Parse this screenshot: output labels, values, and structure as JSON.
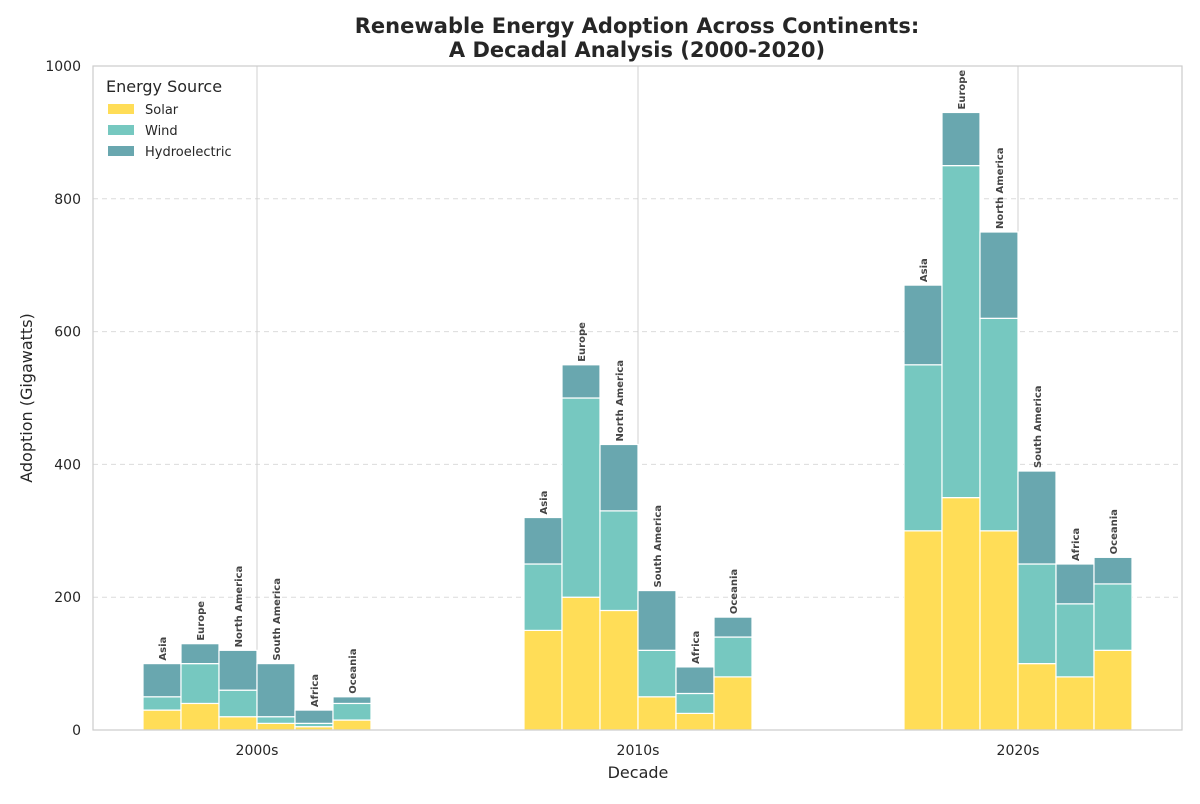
{
  "chart_data": {
    "type": "bar",
    "stacked": true,
    "title": "Renewable Energy Adoption Across Continents:\nA Decadal Analysis (2000-2020)",
    "title_lines": [
      "Renewable Energy Adoption Across Continents:",
      "A Decadal Analysis (2000-2020)"
    ],
    "xlabel": "Decade",
    "ylabel": "Adoption (Gigawatts)",
    "ylim": [
      0,
      1000
    ],
    "yticks": [
      0,
      200,
      400,
      600,
      800,
      1000
    ],
    "grid": "horizontal dashed",
    "legend_title": "Energy Source",
    "legend_position": "top-left",
    "categories": [
      "2000s",
      "2010s",
      "2020s"
    ],
    "groups": [
      "Asia",
      "Europe",
      "North America",
      "South America",
      "Africa",
      "Oceania"
    ],
    "series": [
      {
        "name": "Solar",
        "color": "#ffdd57",
        "values": [
          [
            30,
            40,
            20,
            10,
            5,
            15
          ],
          [
            150,
            200,
            180,
            50,
            25,
            80
          ],
          [
            300,
            350,
            300,
            100,
            80,
            120
          ]
        ]
      },
      {
        "name": "Wind",
        "color": "#76c8c0",
        "values": [
          [
            20,
            60,
            40,
            10,
            5,
            25
          ],
          [
            100,
            300,
            150,
            70,
            30,
            60
          ],
          [
            250,
            500,
            320,
            150,
            110,
            100
          ]
        ]
      },
      {
        "name": "Hydroelectric",
        "color": "#69a7af",
        "values": [
          [
            50,
            30,
            60,
            80,
            20,
            10
          ],
          [
            70,
            50,
            100,
            90,
            40,
            30
          ],
          [
            120,
            80,
            130,
            140,
            60,
            40
          ]
        ]
      }
    ]
  }
}
